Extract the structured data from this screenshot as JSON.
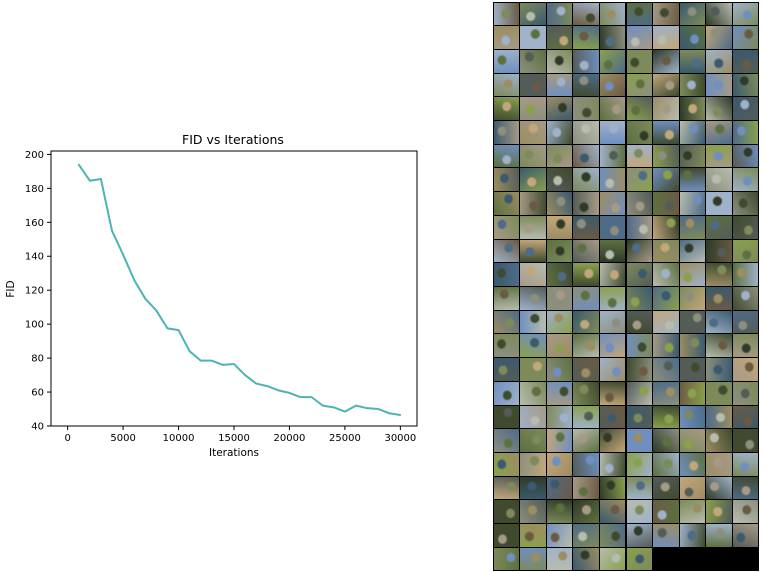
{
  "chart_data": {
    "type": "line",
    "title": "FID vs Iterations",
    "xlabel": "Iterations",
    "ylabel": "FID",
    "xlim": [
      -1500,
      31500
    ],
    "ylim": [
      40,
      202
    ],
    "xticks": [
      0,
      5000,
      10000,
      15000,
      20000,
      25000,
      30000
    ],
    "yticks": [
      40,
      60,
      80,
      100,
      120,
      140,
      160,
      180,
      200
    ],
    "grid": false,
    "series": [
      {
        "color": "#4db3b3",
        "x": [
          1000,
          2000,
          2500,
          3000,
          4000,
          5000,
          6000,
          7000,
          8000,
          9000,
          10000,
          11000,
          12000,
          13000,
          14000,
          15000,
          16000,
          17000,
          18000,
          19000,
          20000,
          21000,
          22000,
          23000,
          24000,
          25000,
          26000,
          27000,
          28000,
          29000,
          30000
        ],
        "y": [
          194,
          184.5,
          185,
          185.5,
          155,
          141,
          126,
          115,
          108,
          97.5,
          96.5,
          84,
          78.5,
          78.5,
          76,
          76.5,
          70,
          65,
          63.5,
          61,
          59.5,
          57,
          57,
          52,
          51,
          48.5,
          52,
          50.5,
          50,
          47.5,
          46.5
        ]
      }
    ]
  },
  "sample_grid": {
    "columns": 10,
    "rows": 24,
    "filled_in_last_row": 6,
    "palette": [
      "#6f8fbf",
      "#7d8a5a",
      "#3f4a2e",
      "#8c8f7e",
      "#5d7040",
      "#a69a86",
      "#2f3a28",
      "#9fb2c9",
      "#6b5a43",
      "#b7bcae",
      "#4e6b88",
      "#8aa04c",
      "#545c58",
      "#c2a77a",
      "#3a5a6e",
      "#9c8d62"
    ]
  }
}
